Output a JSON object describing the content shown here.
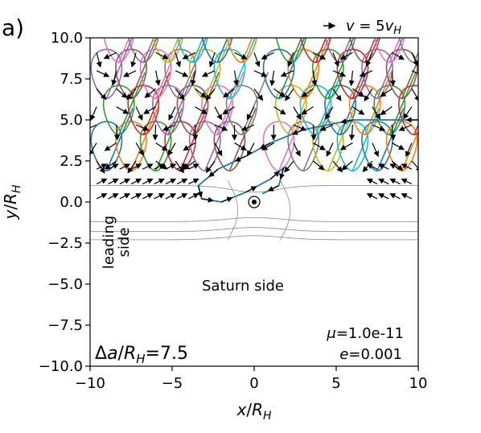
{
  "panel_label": "a)",
  "chart_data": {
    "type": "line",
    "xlabel": "x/R_H",
    "ylabel": "y/R_H",
    "xlim": [
      -10,
      10
    ],
    "ylim": [
      -10,
      10
    ],
    "xticks": [
      -10,
      -5,
      0,
      5,
      10
    ],
    "yticks": [
      -10,
      -7.5,
      -5,
      -2.5,
      0,
      2.5,
      5,
      7.5,
      10
    ],
    "xtick_labels": [
      "−10",
      "−5",
      "0",
      "5",
      "10"
    ],
    "ytick_labels": [
      "−10.0",
      "−7.5",
      "−5.0",
      "−2.5",
      "0.0",
      "2.5",
      "5.0",
      "7.5",
      "10.0"
    ],
    "grid": false,
    "legend": {
      "label": "v = 5v_H",
      "placement": "top-right"
    },
    "annotations": {
      "leading_side": [
        "leading",
        "side"
      ],
      "saturn_side": "Saturn side",
      "delta_a": "Δa/R_H=7.5",
      "mu": "μ=1.0e-11",
      "e": "e=0.001"
    },
    "trajectory_colors": [
      "#1f77b4",
      "#ff7f0e",
      "#2ca02c",
      "#d62728",
      "#9467bd",
      "#8c564b",
      "#e377c2",
      "#7f7f7f",
      "#bcbd22",
      "#17becf"
    ],
    "primary_trajectory": {
      "name": "",
      "x": [
        10,
        6,
        3,
        1,
        -0.5,
        -2.2,
        -3.4,
        -3.2,
        -2,
        -0.5,
        1,
        1.8,
        1.5,
        0.5
      ],
      "y": [
        5,
        5,
        4.4,
        3.6,
        2.8,
        2.0,
        1.0,
        0.2,
        0,
        0.6,
        1.4,
        2.1,
        1.0,
        0.5
      ]
    },
    "hill_sphere_body": {
      "x": 0,
      "y": 0
    },
    "loop_trajectories": {
      "description_omitted": true,
      "cusp_x": [
        -9,
        -7.5,
        -6,
        -4.5,
        -3,
        -1.5,
        1.5,
        3,
        4.5,
        6,
        7.5,
        9
      ],
      "cusp_y_min": 1.9,
      "loop_height": 2.2
    },
    "flow_lines_y": [
      1.0,
      -1.2,
      -1.8,
      -2.3
    ]
  }
}
